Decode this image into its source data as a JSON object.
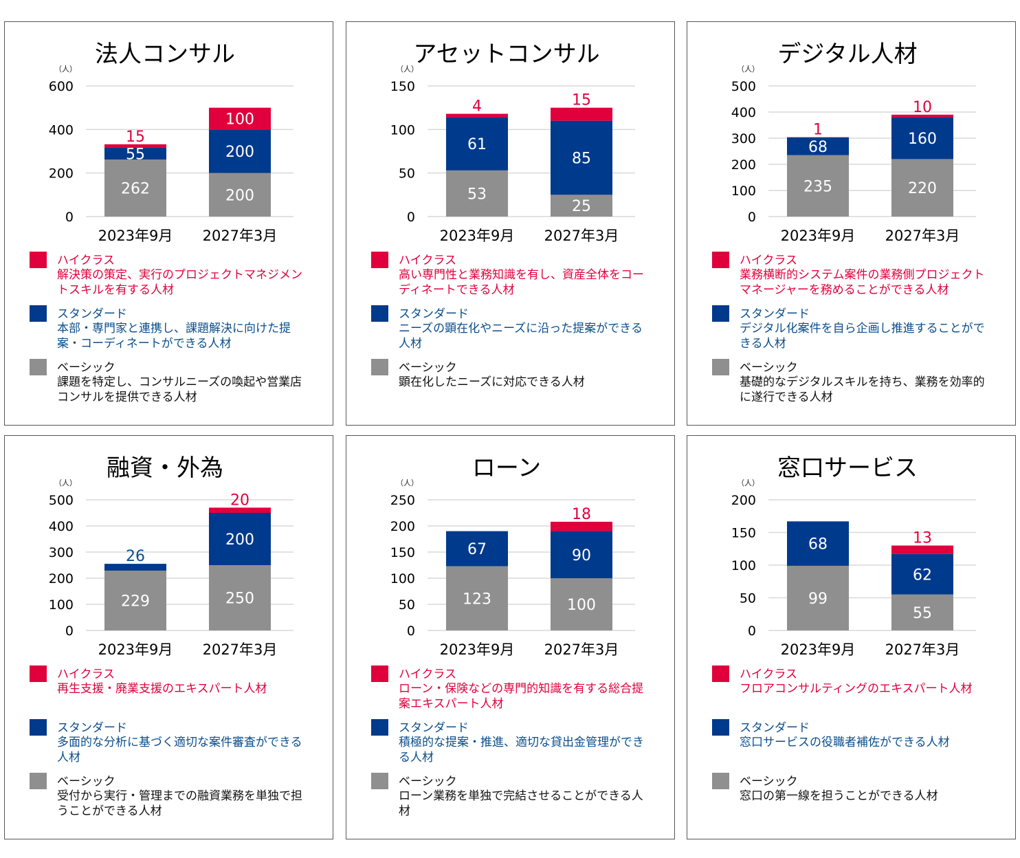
{
  "legend_labels": {
    "high": "ハイクラス",
    "standard": "スタンダード",
    "basic": "ベーシック"
  },
  "unit_label": "（人）",
  "colors": {
    "high": "#e0003c",
    "standard": "#003a8c",
    "basic": "#8f8f8f",
    "high_text": "#e0003c",
    "standard_text": "#0b4e8c"
  },
  "chart_data": [
    {
      "type": "bar",
      "stacked": true,
      "title": "法人コンサル",
      "ylabel": "（人）",
      "ylim": [
        0,
        600
      ],
      "yticks": [
        0,
        200,
        400,
        600
      ],
      "categories": [
        "2023年9月",
        "2027年3月"
      ],
      "series": [
        {
          "name": "ベーシック",
          "values": [
            262,
            200
          ]
        },
        {
          "name": "スタンダード",
          "values": [
            55,
            200
          ]
        },
        {
          "name": "ハイクラス",
          "values": [
            15,
            100
          ]
        }
      ],
      "descriptions": {
        "high": "解決策の策定、実行のプロジェクトマネジメントスキルを有する人材",
        "standard": "本部・専門家と連携し、課題解決に向けた提案・コーディネートができる人材",
        "basic": "課題を特定し、コンサルニーズの喚起や営業店コンサルを提供できる人材"
      }
    },
    {
      "type": "bar",
      "stacked": true,
      "title": "アセットコンサル",
      "ylabel": "（人）",
      "ylim": [
        0,
        150
      ],
      "yticks": [
        0,
        50,
        100,
        150
      ],
      "categories": [
        "2023年9月",
        "2027年3月"
      ],
      "series": [
        {
          "name": "ベーシック",
          "values": [
            53,
            25
          ]
        },
        {
          "name": "スタンダード",
          "values": [
            61,
            85
          ]
        },
        {
          "name": "ハイクラス",
          "values": [
            4,
            15
          ]
        }
      ],
      "descriptions": {
        "high": "高い専門性と業務知識を有し、資産全体をコーディネートできる人材",
        "standard": "ニーズの顕在化やニーズに沿った提案ができる人材",
        "basic": "顕在化したニーズに対応できる人材"
      }
    },
    {
      "type": "bar",
      "stacked": true,
      "title": "デジタル人材",
      "ylabel": "（人）",
      "ylim": [
        0,
        500
      ],
      "yticks": [
        0,
        100,
        200,
        300,
        400,
        500
      ],
      "categories": [
        "2023年9月",
        "2027年3月"
      ],
      "series": [
        {
          "name": "ベーシック",
          "values": [
            235,
            220
          ]
        },
        {
          "name": "スタンダード",
          "values": [
            68,
            160
          ]
        },
        {
          "name": "ハイクラス",
          "values": [
            1,
            10
          ]
        }
      ],
      "descriptions": {
        "high": "業務横断的システム案件の業務側プロジェクトマネージャーを務めることができる人材",
        "standard": "デジタル化案件を自ら企画し推進することができる人材",
        "basic": "基礎的なデジタルスキルを持ち、業務を効率的に遂行できる人材"
      }
    },
    {
      "type": "bar",
      "stacked": true,
      "title": "融資・外為",
      "ylabel": "（人）",
      "ylim": [
        0,
        500
      ],
      "yticks": [
        0,
        100,
        200,
        300,
        400,
        500
      ],
      "categories": [
        "2023年9月",
        "2027年3月"
      ],
      "series": [
        {
          "name": "ベーシック",
          "values": [
            229,
            250
          ]
        },
        {
          "name": "スタンダード",
          "values": [
            26,
            200
          ]
        },
        {
          "name": "ハイクラス",
          "values": [
            0,
            20
          ]
        }
      ],
      "descriptions": {
        "high": "再生支援・廃業支援のエキスパート人材",
        "standard": "多面的な分析に基づく適切な案件審査ができる人材",
        "basic": "受付から実行・管理までの融資業務を単独で担うことができる人材"
      }
    },
    {
      "type": "bar",
      "stacked": true,
      "title": "ローン",
      "ylabel": "（人）",
      "ylim": [
        0,
        250
      ],
      "yticks": [
        0,
        50,
        100,
        150,
        200,
        250
      ],
      "categories": [
        "2023年9月",
        "2027年3月"
      ],
      "series": [
        {
          "name": "ベーシック",
          "values": [
            123,
            100
          ]
        },
        {
          "name": "スタンダード",
          "values": [
            67,
            90
          ]
        },
        {
          "name": "ハイクラス",
          "values": [
            0,
            18
          ]
        }
      ],
      "descriptions": {
        "high": "ローン・保険などの専門的知識を有する総合提案エキスパート人材",
        "standard": "積極的な提案・推進、適切な貸出金管理ができる人材",
        "basic": "ローン業務を単独で完結させることができる人材"
      }
    },
    {
      "type": "bar",
      "stacked": true,
      "title": "窓口サービス",
      "ylabel": "（人）",
      "ylim": [
        0,
        200
      ],
      "yticks": [
        0,
        50,
        100,
        150,
        200
      ],
      "categories": [
        "2023年9月",
        "2027年3月"
      ],
      "series": [
        {
          "name": "ベーシック",
          "values": [
            99,
            55
          ]
        },
        {
          "name": "スタンダード",
          "values": [
            68,
            62
          ]
        },
        {
          "name": "ハイクラス",
          "values": [
            0,
            13
          ]
        }
      ],
      "descriptions": {
        "high": "フロアコンサルティングのエキスパート人材",
        "standard": "窓口サービスの役職者補佐ができる人材",
        "basic": "窓口の第一線を担うことができる人材"
      }
    }
  ]
}
